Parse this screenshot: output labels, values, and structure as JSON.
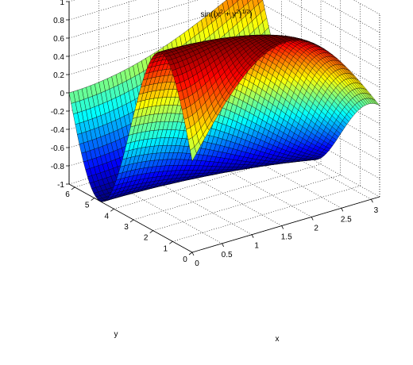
{
  "chart_data": {
    "type": "surface",
    "title": {
      "text": "sin((x",
      "sup1": "2",
      "mid": " + y",
      "sup2": "2",
      "end": ")",
      "sup3": "1/2",
      "close": ")"
    },
    "function": "sin(sqrt(x^2 + y^2))",
    "xlabel": "x",
    "ylabel": "y",
    "zlabel": "",
    "x_range": [
      0,
      3.14159
    ],
    "y_range": [
      0,
      6.28319
    ],
    "z_range": [
      -1,
      1
    ],
    "grid": true,
    "box": true,
    "colormap": "jet",
    "xticks": [
      "0",
      "0.5",
      "1",
      "1.5",
      "2",
      "2.5",
      "3"
    ],
    "yticks": [
      "0",
      "1",
      "2",
      "3",
      "4",
      "5",
      "6"
    ],
    "zticks": [
      "-1",
      "-0.8",
      "-0.6",
      "-0.4",
      "-0.2",
      "0",
      "0.2",
      "0.4",
      "0.6",
      "0.8",
      "1"
    ],
    "mesh": {
      "nx": 44,
      "ny": 60
    }
  }
}
